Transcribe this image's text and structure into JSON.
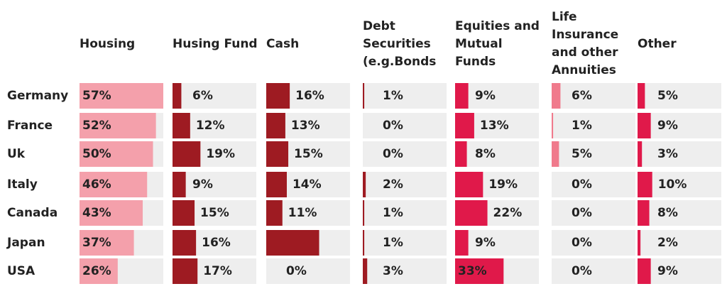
{
  "chart_data": {
    "type": "bar",
    "categories": [
      "Germany",
      "France",
      "Uk",
      "Italy",
      "Canada",
      "Japan",
      "USA"
    ],
    "xlim": [
      0,
      57
    ],
    "series": [
      {
        "name": "Housing",
        "color": "#f4a0ab",
        "values": [
          57,
          52,
          50,
          46,
          43,
          37,
          26
        ],
        "value_labels": [
          "57%",
          "52%",
          "50%",
          "46%",
          "43%",
          "37%",
          "26%"
        ]
      },
      {
        "name": "Husing Fund",
        "color": "#9e1b22",
        "values": [
          6,
          12,
          19,
          9,
          15,
          16,
          17
        ],
        "value_labels": [
          "6%",
          "12%",
          "19%",
          "9%",
          "15%",
          "16%",
          "17%"
        ]
      },
      {
        "name": "Cash",
        "color": "#9e1b22",
        "values": [
          16,
          13,
          15,
          14,
          11,
          36,
          0
        ],
        "value_labels": [
          "16%",
          "13%",
          "15%",
          "14%",
          "11%",
          null,
          "0%"
        ]
      },
      {
        "name": "Debt Securities (e.g.Bonds",
        "color": "#9e1b22",
        "values": [
          1,
          0,
          0,
          2,
          1,
          1,
          3
        ],
        "value_labels": [
          "1%",
          "0%",
          "0%",
          "2%",
          "1%",
          "1%",
          "3%"
        ]
      },
      {
        "name": "Equities and Mutual Funds",
        "color": "#e0194a",
        "values": [
          9,
          13,
          8,
          19,
          22,
          9,
          33
        ],
        "value_labels": [
          "9%",
          "13%",
          "8%",
          "19%",
          "22%",
          "9%",
          "33%"
        ]
      },
      {
        "name": "Life Insurance and other Annuities",
        "color": "#f07a8c",
        "values": [
          6,
          1,
          5,
          0,
          0,
          0,
          0
        ],
        "value_labels": [
          "6%",
          "1%",
          "5%",
          "0%",
          "0%",
          "0%",
          "0%"
        ]
      },
      {
        "name": "Other",
        "color": "#e0194a",
        "values": [
          5,
          9,
          3,
          10,
          8,
          2,
          9
        ],
        "value_labels": [
          "5%",
          "9%",
          "3%",
          "10%",
          "8%",
          "2%",
          "9%"
        ]
      }
    ]
  }
}
